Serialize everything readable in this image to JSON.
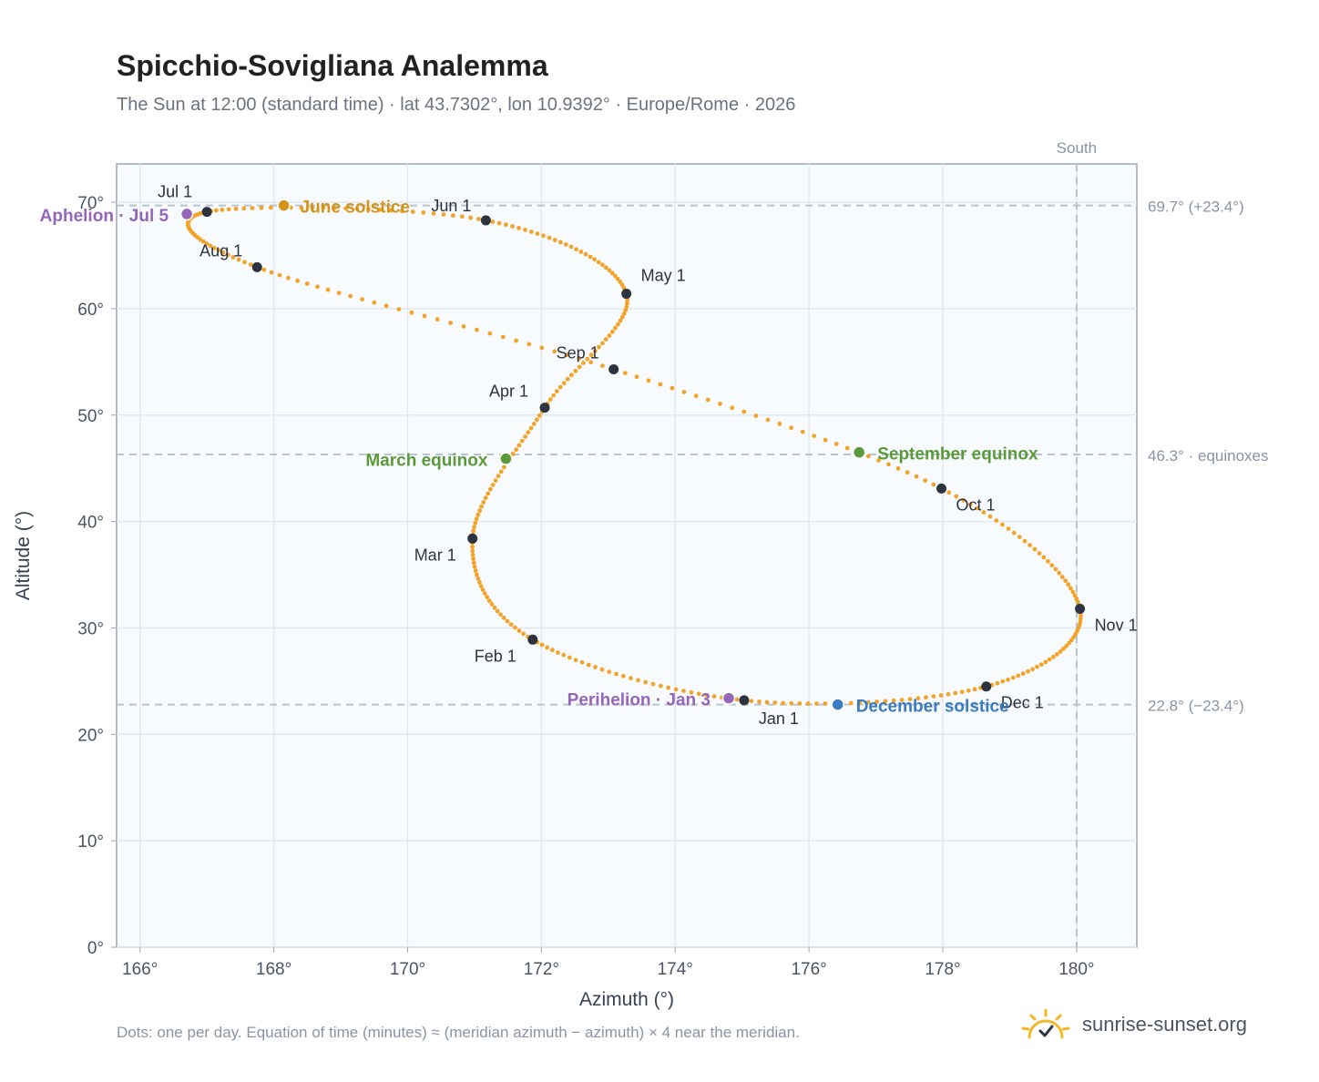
{
  "header": {
    "title": "Spicchio-Sovigliana Analemma",
    "subtitle": "The Sun at 12:00 (standard time) · lat 43.7302°, lon 10.9392° · Europe/Rome · 2026"
  },
  "footer": {
    "note": "Dots: one per day. Equation of time (minutes) ≈ (meridian azimuth − azimuth) × 4 near the meridian.",
    "brand": "sunrise-sunset.org"
  },
  "colors": {
    "curve": "#f2a42a",
    "month_marker": "#2d3440",
    "solstice_june": "#d4941a",
    "solstice_december": "#3a7bbf",
    "equinox": "#5a9a3a",
    "apsis": "#9566b8",
    "reference_line": "#b8c4d0",
    "plot_background": "#f8fbfe",
    "grid": "#e2e8ef"
  },
  "chart_data": {
    "type": "scatter",
    "xlabel": "Azimuth (°)",
    "ylabel": "Altitude (°)",
    "xlim": [
      165.65,
      180.9
    ],
    "ylim": [
      0,
      73.6
    ],
    "x_ticks": [
      "166°",
      "168°",
      "170°",
      "172°",
      "174°",
      "176°",
      "178°",
      "180°"
    ],
    "y_ticks": [
      "0°",
      "10°",
      "20°",
      "30°",
      "40°",
      "50°",
      "60°",
      "70°"
    ],
    "x_tick_values": [
      166,
      168,
      170,
      172,
      174,
      176,
      178,
      180
    ],
    "y_tick_values": [
      0,
      10,
      20,
      30,
      40,
      50,
      60,
      70
    ],
    "grid": true,
    "south_azimuth": 180,
    "south_label": "South",
    "reference_lines": [
      {
        "altitude": 69.7,
        "label": "69.7° (+23.4°)"
      },
      {
        "altitude": 46.3,
        "label": "46.3° · equinoxes"
      },
      {
        "altitude": 22.8,
        "label": "22.8° (−23.4°)"
      }
    ],
    "month_points": [
      {
        "label": "Jan 1",
        "x": 175.03,
        "y": 23.2
      },
      {
        "label": "Feb 1",
        "x": 171.87,
        "y": 28.9
      },
      {
        "label": "Mar 1",
        "x": 170.97,
        "y": 38.4
      },
      {
        "label": "Apr 1",
        "x": 172.05,
        "y": 50.7
      },
      {
        "label": "May 1",
        "x": 173.27,
        "y": 61.4
      },
      {
        "label": "Jun 1",
        "x": 171.17,
        "y": 68.3
      },
      {
        "label": "Jul 1",
        "x": 167.0,
        "y": 69.1
      },
      {
        "label": "Aug 1",
        "x": 167.75,
        "y": 63.9
      },
      {
        "label": "Sep 1",
        "x": 173.08,
        "y": 54.3
      },
      {
        "label": "Oct 1",
        "x": 177.98,
        "y": 43.1
      },
      {
        "label": "Nov 1",
        "x": 180.05,
        "y": 31.8
      },
      {
        "label": "Dec 1",
        "x": 178.65,
        "y": 24.5
      }
    ],
    "special_points": [
      {
        "label": "June solstice",
        "x": 168.15,
        "y": 69.7,
        "kind": "solstice_june"
      },
      {
        "label": "December solstice",
        "x": 176.43,
        "y": 22.8,
        "kind": "solstice_december"
      },
      {
        "label": "March equinox",
        "x": 171.47,
        "y": 45.9,
        "kind": "equinox"
      },
      {
        "label": "September equinox",
        "x": 176.75,
        "y": 46.5,
        "kind": "equinox"
      },
      {
        "label": "Aphelion · Jul 5",
        "x": 166.7,
        "y": 68.9,
        "kind": "apsis"
      },
      {
        "label": "Perihelion · Jan 3",
        "x": 174.8,
        "y": 23.4,
        "kind": "apsis"
      }
    ]
  }
}
